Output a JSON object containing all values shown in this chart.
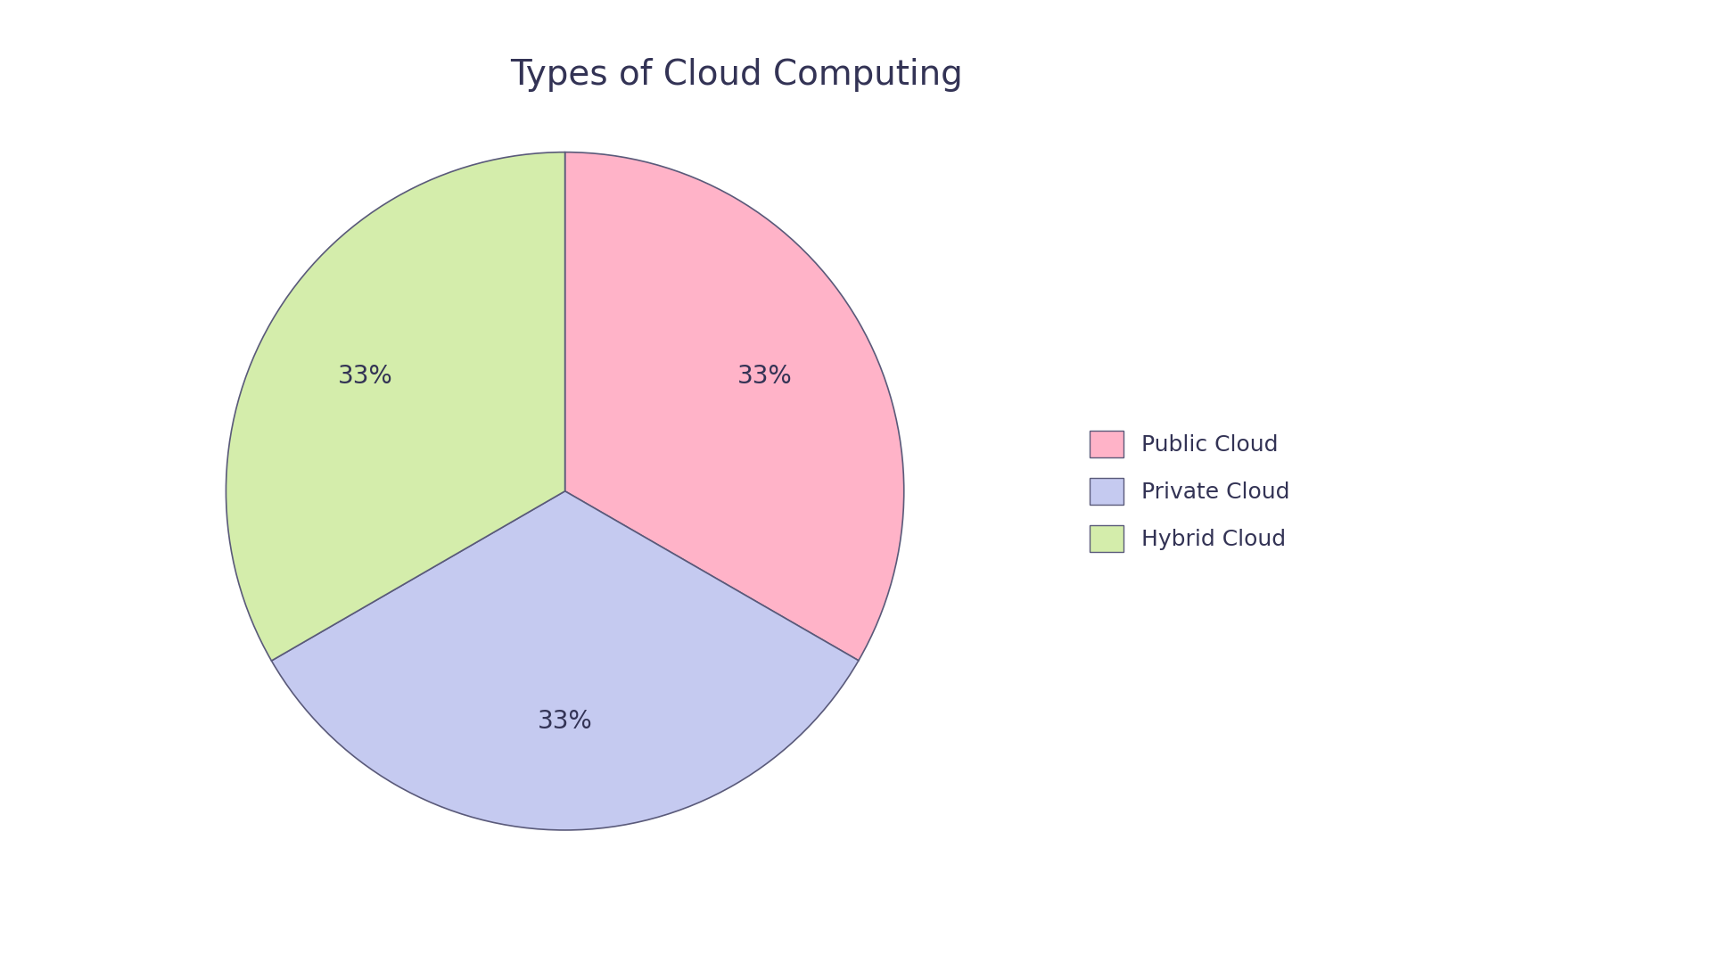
{
  "title": "Types of Cloud Computing",
  "labels": [
    "Public Cloud",
    "Private Cloud",
    "Hybrid Cloud"
  ],
  "values": [
    33.33,
    33.33,
    33.34
  ],
  "colors": [
    "#FFB3C8",
    "#C5CAF0",
    "#D4EDAB"
  ],
  "edge_color": "#5A5A7A",
  "edge_linewidth": 1.2,
  "pct_color": "#333355",
  "pct_fontsize": 20,
  "title_fontsize": 28,
  "legend_fontsize": 18,
  "background_color": "#FFFFFF",
  "startangle": 90,
  "pctdistance": 0.68
}
